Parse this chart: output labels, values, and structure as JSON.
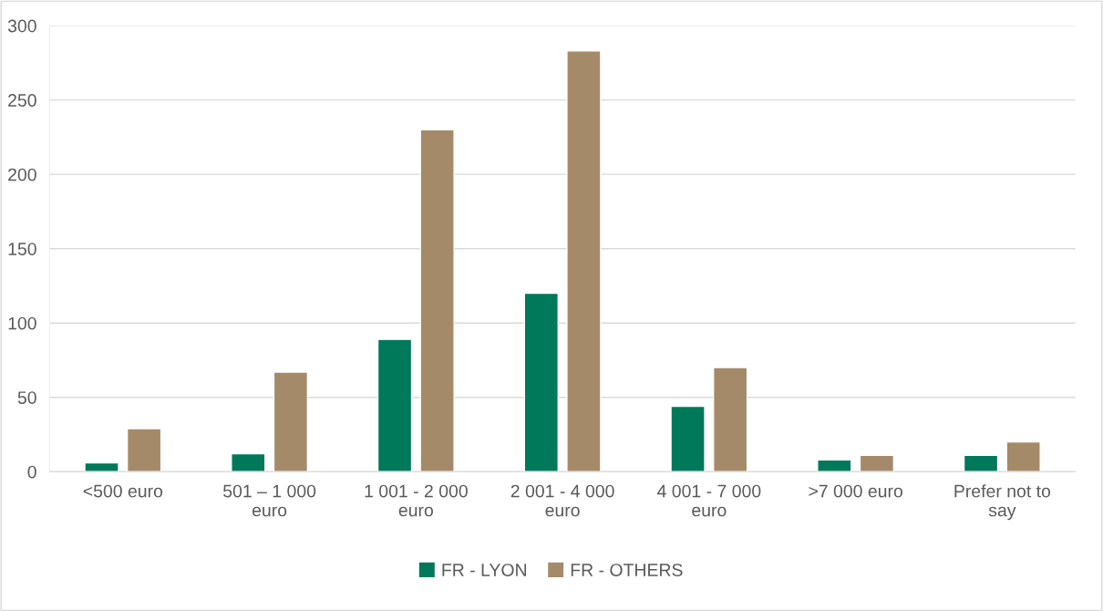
{
  "chart_data": {
    "type": "bar",
    "categories": [
      "<500 euro",
      "501 – 1 000 euro",
      "1 001 - 2 000 euro",
      "2 001 - 4 000 euro",
      "4 001 - 7 000 euro",
      ">7 000 euro",
      "Prefer not to say"
    ],
    "series": [
      {
        "name": "FR - LYON",
        "color": "#00785a",
        "values": [
          6,
          12,
          89,
          120,
          44,
          8,
          11
        ]
      },
      {
        "name": "FR - OTHERS",
        "color": "#a58a6a",
        "values": [
          29,
          67,
          230,
          283,
          70,
          11,
          20
        ]
      }
    ],
    "ylim": [
      0,
      300
    ],
    "yticks": [
      0,
      50,
      100,
      150,
      200,
      250,
      300
    ],
    "grid": "y",
    "legend": "bottom"
  }
}
